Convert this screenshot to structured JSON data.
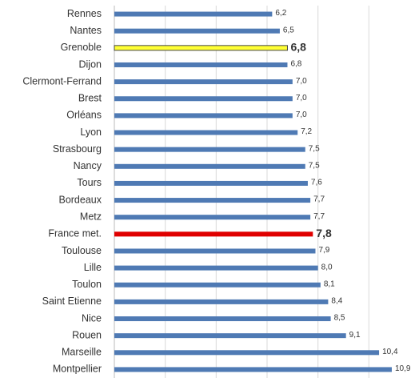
{
  "chart_data": {
    "type": "barh",
    "categories": [
      "Rennes",
      "Nantes",
      "Grenoble",
      "Dijon",
      "Clermont-Ferrand",
      "Brest",
      "Orléans",
      "Lyon",
      "Strasbourg",
      "Nancy",
      "Tours",
      "Bordeaux",
      "Metz",
      "France met.",
      "Toulouse",
      "Lille",
      "Toulon",
      "Saint Etienne",
      "Nice",
      "Rouen",
      "Marseille",
      "Montpellier"
    ],
    "values": [
      6.2,
      6.5,
      6.8,
      6.8,
      7.0,
      7.0,
      7.0,
      7.2,
      7.5,
      7.5,
      7.6,
      7.7,
      7.7,
      7.8,
      7.9,
      8.0,
      8.1,
      8.4,
      8.5,
      9.1,
      10.4,
      10.9
    ],
    "value_labels": [
      "6,2",
      "6,5",
      "6,8",
      "6,8",
      "7,0",
      "7,0",
      "7,0",
      "7,2",
      "7,5",
      "7,5",
      "7,6",
      "7,7",
      "7,7",
      "7,8",
      "7,9",
      "8,0",
      "8,1",
      "8,4",
      "8,5",
      "9,1",
      "10,4",
      "10,9"
    ],
    "color": "#4f7ab4",
    "colors": [
      "#4f7ab4",
      "#4f7ab4",
      "#ffff33",
      "#4f7ab4",
      "#4f7ab4",
      "#4f7ab4",
      "#4f7ab4",
      "#4f7ab4",
      "#4f7ab4",
      "#4f7ab4",
      "#4f7ab4",
      "#4f7ab4",
      "#4f7ab4",
      "#e00000",
      "#4f7ab4",
      "#4f7ab4",
      "#4f7ab4",
      "#4f7ab4",
      "#4f7ab4",
      "#4f7ab4",
      "#4f7ab4",
      "#4f7ab4"
    ],
    "xlim": [
      0,
      12
    ],
    "xticks": [
      0,
      2,
      4,
      6,
      8,
      10
    ],
    "grid": true
  }
}
